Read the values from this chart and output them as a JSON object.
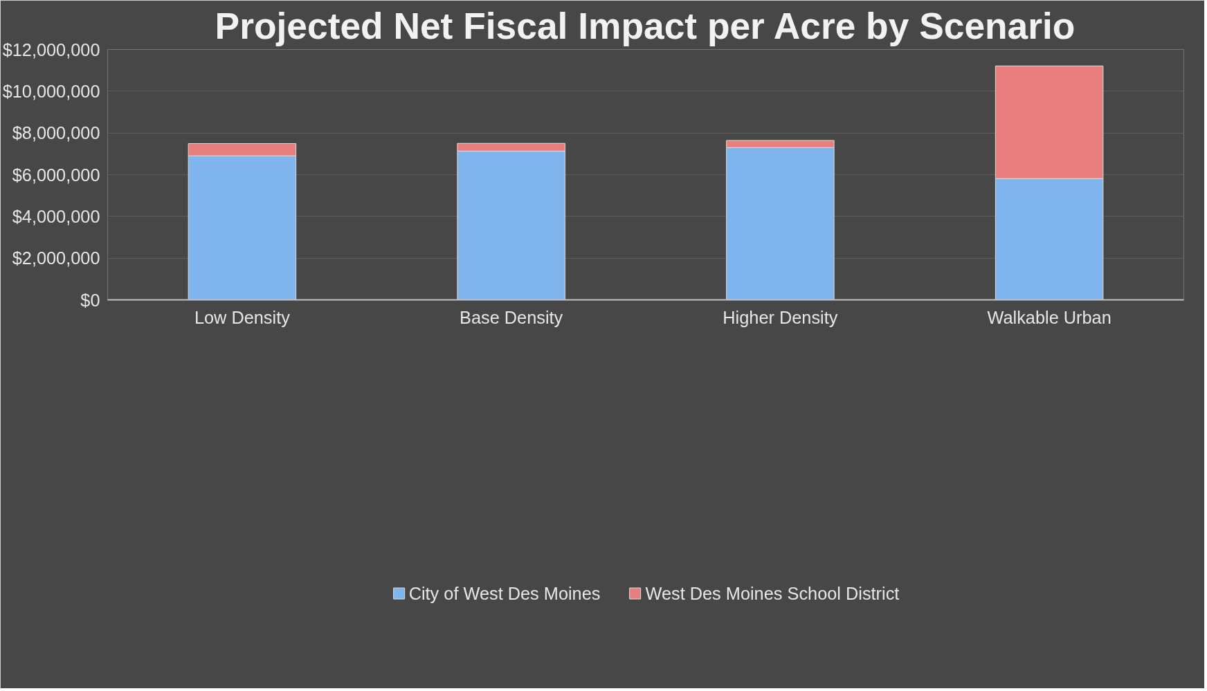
{
  "chart_data": {
    "type": "bar",
    "title": "Projected Net Fiscal Impact per Acre by Scenario",
    "categories": [
      "Low Density",
      "Base Density",
      "Higher Density",
      "Walkable Urban"
    ],
    "stacked": true,
    "series": [
      {
        "name": "City of West Des Moines",
        "color": "#7fb4ec",
        "values": [
          6900000,
          7130000,
          7300000,
          5810000
        ]
      },
      {
        "name": "West Des Moines School District",
        "color": "#e97e7e",
        "values": [
          590000,
          370000,
          340000,
          5400000
        ]
      }
    ],
    "ylim": [
      0,
      12000000
    ],
    "yticks": [
      {
        "value": 0,
        "label": "$0"
      },
      {
        "value": 2000000,
        "label": "$2,000,000"
      },
      {
        "value": 4000000,
        "label": "$4,000,000"
      },
      {
        "value": 6000000,
        "label": "$6,000,000"
      },
      {
        "value": 8000000,
        "label": "$8,000,000"
      },
      {
        "value": 10000000,
        "label": "$10,000,000"
      },
      {
        "value": 12000000,
        "label": "$12,000,000"
      }
    ],
    "grid": "y",
    "legend": "bottom"
  }
}
